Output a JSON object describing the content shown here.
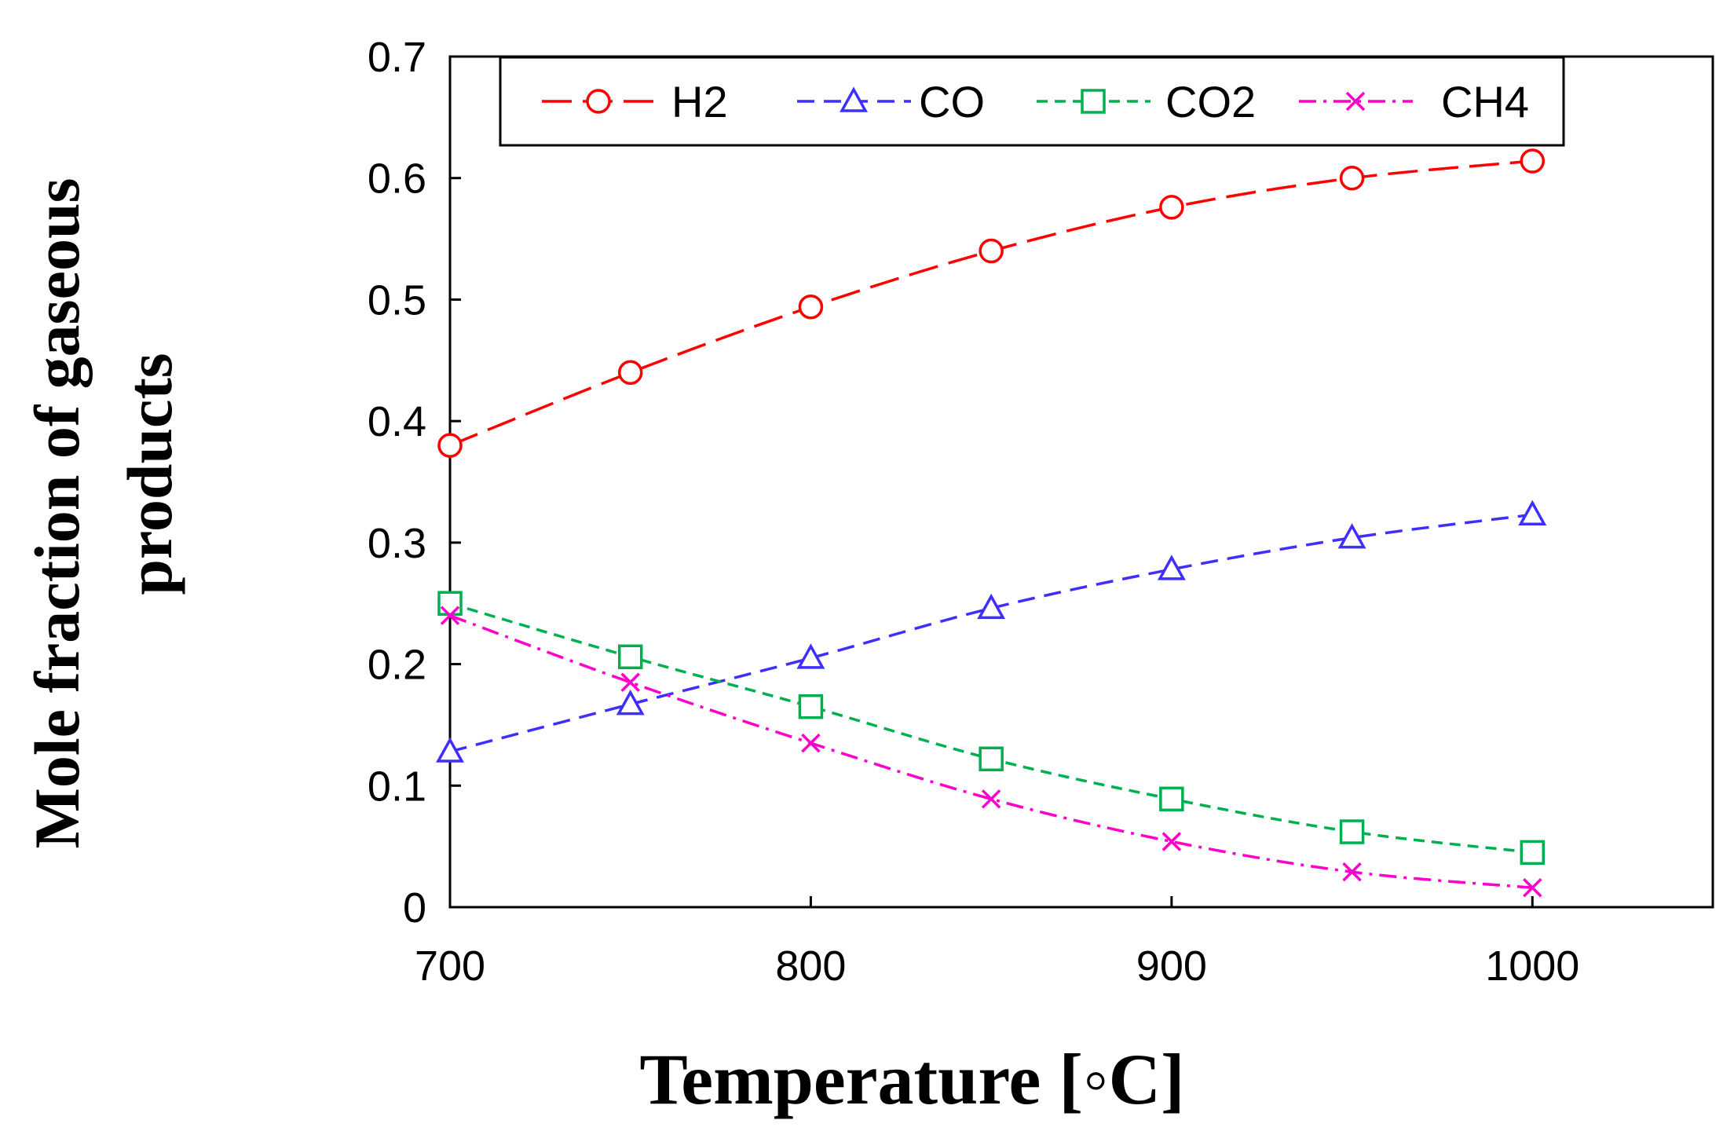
{
  "chart_data": {
    "type": "line",
    "title": "",
    "xlabel": "Temperature [◦C]",
    "ylabel_lines": [
      "Mole fraction of gaseous",
      "products"
    ],
    "xlim": [
      700,
      1050
    ],
    "ylim": [
      0,
      0.7
    ],
    "xticks": [
      700,
      800,
      900,
      1000
    ],
    "xtick_labels": [
      "700",
      "800",
      "900",
      "1000"
    ],
    "yticks": [
      0,
      0.1,
      0.2,
      0.3,
      0.4,
      0.5,
      0.6,
      0.7
    ],
    "ytick_labels": [
      "0",
      "0.1",
      "0.2",
      "0.3",
      "0.4",
      "0.5",
      "0.6",
      "0.7"
    ],
    "grid": false,
    "legend_position": "top",
    "x": [
      700,
      750,
      800,
      850,
      900,
      950,
      1000
    ],
    "series": [
      {
        "name": "H2",
        "color": "#ff0000",
        "marker": "circle",
        "dash": "long-dash",
        "values": [
          0.38,
          0.44,
          0.494,
          0.54,
          0.576,
          0.6,
          0.614
        ]
      },
      {
        "name": "CO",
        "color": "#3f2fff",
        "marker": "triangle",
        "dash": "dash",
        "values": [
          0.128,
          0.167,
          0.205,
          0.246,
          0.278,
          0.304,
          0.323
        ]
      },
      {
        "name": "CO2",
        "color": "#00b050",
        "marker": "square",
        "dash": "short-dash",
        "values": [
          0.25,
          0.206,
          0.165,
          0.122,
          0.089,
          0.062,
          0.045
        ]
      },
      {
        "name": "CH4",
        "color": "#ff00cc",
        "marker": "x",
        "dash": "dash-dot",
        "values": [
          0.24,
          0.185,
          0.135,
          0.089,
          0.054,
          0.029,
          0.016
        ]
      }
    ]
  }
}
